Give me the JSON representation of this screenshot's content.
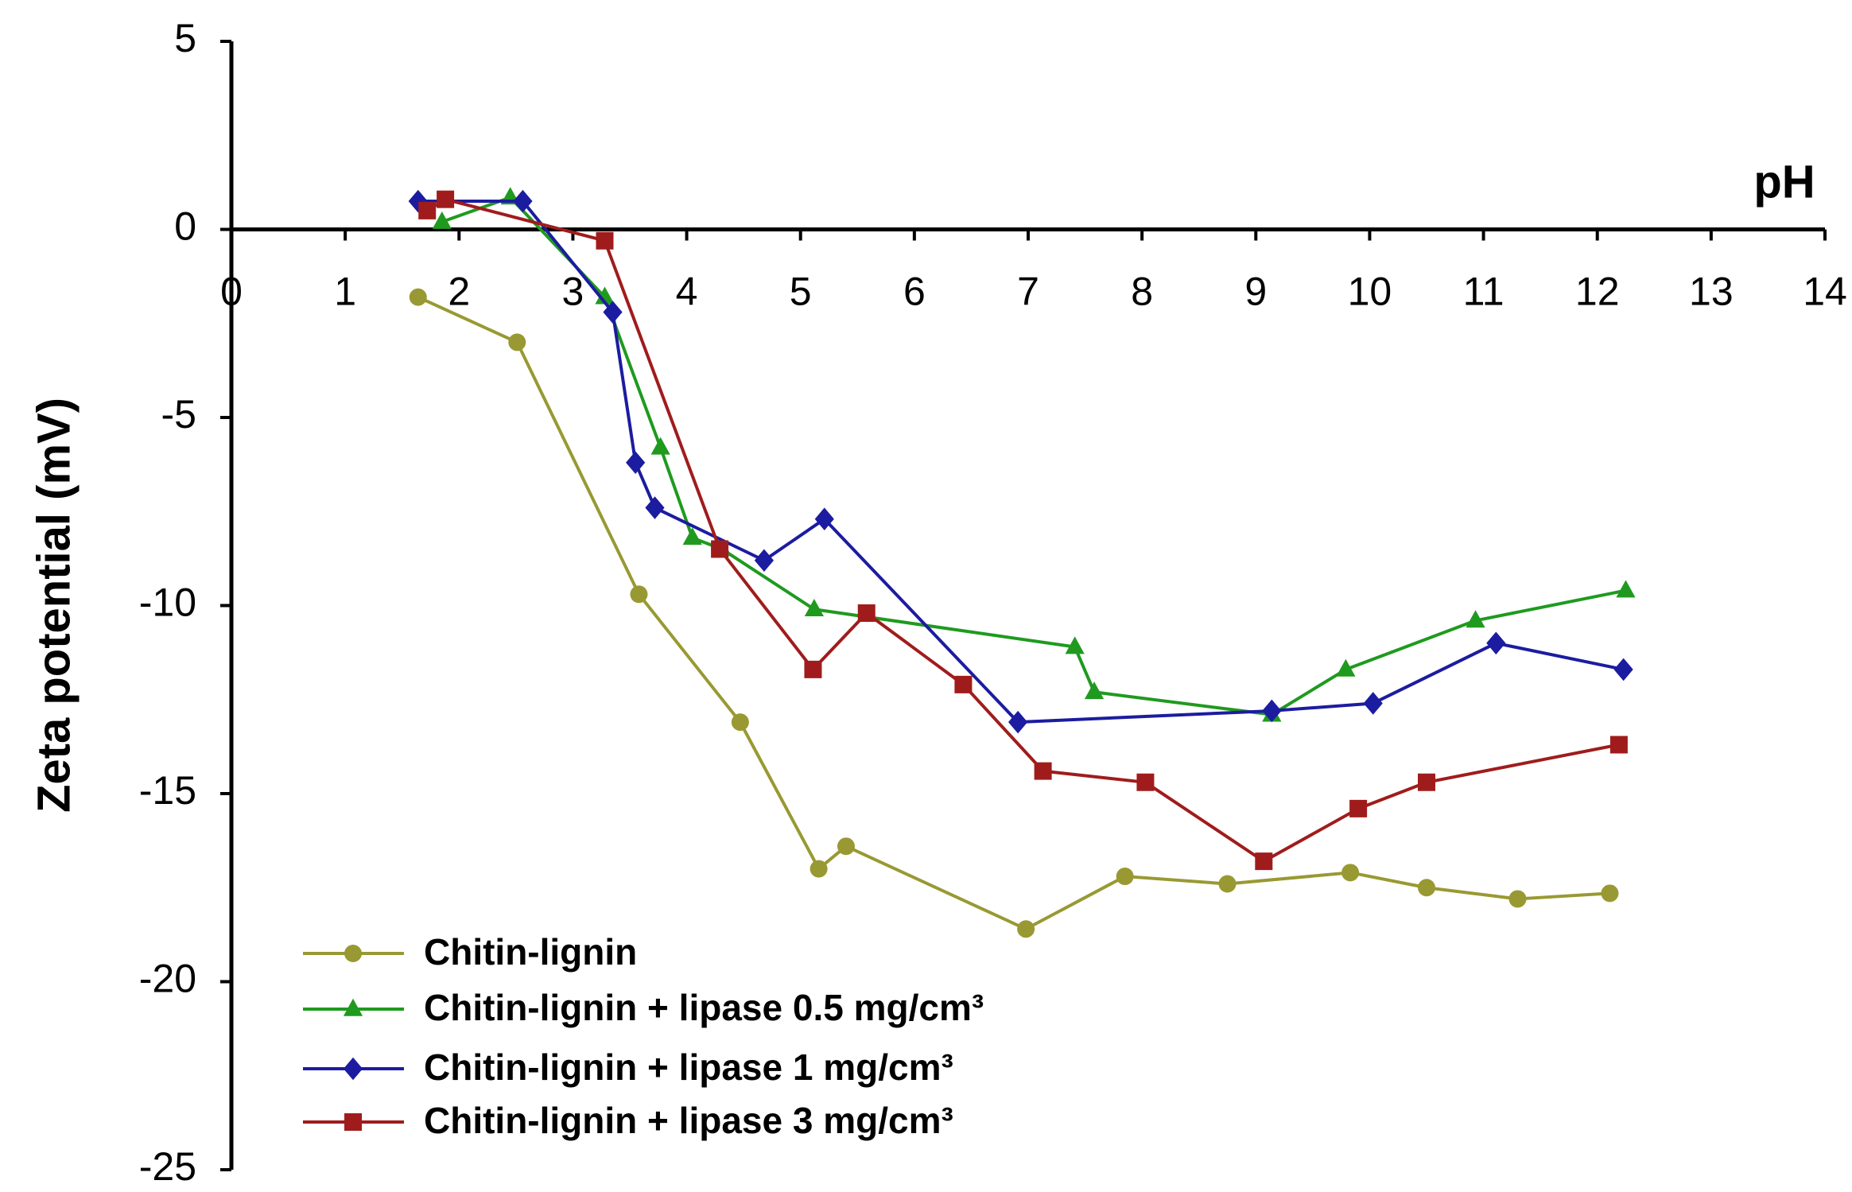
{
  "chart_data": {
    "type": "line",
    "x_label": "pH",
    "y_label": "Zeta potential (mV)",
    "xlim": [
      0,
      14
    ],
    "xticks": [
      0,
      1,
      2,
      3,
      4,
      5,
      6,
      7,
      8,
      9,
      10,
      11,
      12,
      13,
      14
    ],
    "ylim": [
      -25,
      5
    ],
    "yticks": [
      5,
      0,
      -5,
      -10,
      -15,
      -20,
      -25
    ],
    "grid": false,
    "legend": "lower left",
    "series": [
      {
        "name": "Chitin-lignin",
        "color": "#999933",
        "marker": "circle",
        "x": [
          1.64,
          2.51,
          3.58,
          4.47,
          5.16,
          5.4,
          6.98,
          7.85,
          8.75,
          9.83,
          10.5,
          11.3,
          12.11
        ],
        "values": [
          -1.8,
          -3.0,
          -9.7,
          -13.1,
          -17.0,
          -16.4,
          -18.6,
          -17.2,
          -17.4,
          -17.1,
          -17.5,
          -17.8,
          -17.65
        ]
      },
      {
        "name": "Chitin-lignin + lipase 0.5 mg/cm³",
        "color": "#1f9a1f",
        "marker": "triangle",
        "x": [
          1.85,
          2.45,
          3.28,
          3.77,
          4.05,
          4.31,
          5.12,
          7.41,
          7.58,
          9.14,
          9.79,
          10.93,
          12.25
        ],
        "values": [
          0.2,
          0.85,
          -1.8,
          -5.8,
          -8.2,
          -8.5,
          -10.1,
          -11.1,
          -12.3,
          -12.9,
          -11.7,
          -10.4,
          -9.6
        ]
      },
      {
        "name": "Chitin-lignin + lipase 1 mg/cm³",
        "color": "#1c1ca0",
        "marker": "diamond",
        "x": [
          1.64,
          2.56,
          3.35,
          3.55,
          3.72,
          4.68,
          5.21,
          6.91,
          9.14,
          10.03,
          11.11,
          12.23
        ],
        "values": [
          0.75,
          0.75,
          -2.2,
          -6.2,
          -7.4,
          -8.8,
          -7.7,
          -13.1,
          -12.8,
          -12.6,
          -11.0,
          -11.7
        ]
      },
      {
        "name": "Chitin-lignin + lipase 3 mg/cm³",
        "color": "#a01c1c",
        "marker": "square",
        "x": [
          1.72,
          1.88,
          3.28,
          4.29,
          5.11,
          5.58,
          6.43,
          7.13,
          8.03,
          9.07,
          9.9,
          10.5,
          12.19
        ],
        "values": [
          0.5,
          0.8,
          -0.3,
          -8.5,
          -11.7,
          -10.2,
          -12.1,
          -14.4,
          -14.7,
          -16.8,
          -15.4,
          -14.7,
          -13.7
        ]
      }
    ]
  }
}
